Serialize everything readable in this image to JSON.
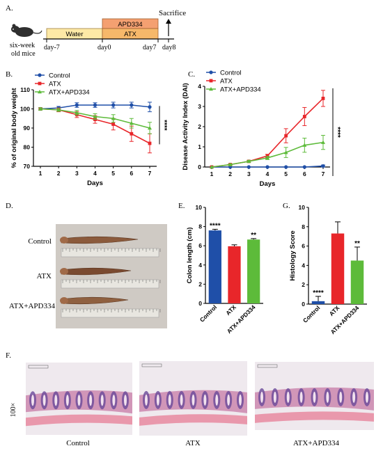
{
  "panels": {
    "a": "A.",
    "b": "B.",
    "c": "C.",
    "d": "D.",
    "e": "E.",
    "f": "F.",
    "g": "G."
  },
  "timeline": {
    "subject": [
      "six-week",
      "old mice"
    ],
    "bars": {
      "water": "Water",
      "apd": "APD334",
      "atx": "ATX"
    },
    "marks": [
      "day-7",
      "day0",
      "day7",
      "day8"
    ],
    "endpoint": "Sacrifice",
    "colors": {
      "water": "#fde9a6",
      "apd": "#f4a071",
      "atx": "#f6b86a"
    }
  },
  "colors": {
    "control": "#1f4fa8",
    "atx": "#e8262a",
    "atx_apd": "#5dbb3a"
  },
  "chart_data": [
    {
      "id": "b",
      "type": "line",
      "title": "",
      "xlabel": "Days",
      "ylabel": "% of original body weight",
      "x": [
        1,
        2,
        3,
        4,
        5,
        6,
        7
      ],
      "xlim": [
        1,
        7
      ],
      "ylim": [
        70,
        110
      ],
      "yticks": [
        70,
        80,
        90,
        100,
        110
      ],
      "legend": "top-left",
      "significance": "****",
      "series": [
        {
          "name": "Control",
          "values": [
            100,
            100.5,
            102,
            102,
            102,
            102,
            101
          ],
          "err": [
            0.6,
            0.8,
            1.2,
            1.2,
            1.5,
            1.5,
            2.5
          ]
        },
        {
          "name": "ATX",
          "values": [
            100,
            99.5,
            97,
            94.5,
            92,
            87,
            82
          ],
          "err": [
            0.6,
            1,
            1.5,
            2,
            3,
            4,
            5
          ]
        },
        {
          "name": "ATX+APD334",
          "values": [
            100,
            99.5,
            98,
            96,
            95,
            92.5,
            90
          ],
          "err": [
            0.6,
            0.8,
            1.2,
            1.5,
            2,
            2.5,
            3
          ]
        }
      ]
    },
    {
      "id": "c",
      "type": "line",
      "title": "",
      "xlabel": "Days",
      "ylabel": "Disease Activity Index (DAI)",
      "x": [
        1,
        2,
        3,
        4,
        5,
        6,
        7
      ],
      "xlim": [
        1,
        7
      ],
      "ylim": [
        0,
        4
      ],
      "yticks": [
        0,
        1,
        2,
        3,
        4
      ],
      "legend": "top-left",
      "significance": "****",
      "series": [
        {
          "name": "Control",
          "values": [
            0,
            0,
            0,
            0,
            0,
            0,
            0.05
          ],
          "err": [
            0,
            0,
            0,
            0,
            0,
            0,
            0.05
          ]
        },
        {
          "name": "ATX",
          "values": [
            0,
            0.12,
            0.28,
            0.55,
            1.55,
            2.5,
            3.4
          ],
          "err": [
            0,
            0.03,
            0.05,
            0.08,
            0.35,
            0.45,
            0.4
          ]
        },
        {
          "name": "ATX+APD334",
          "values": [
            0,
            0.12,
            0.28,
            0.45,
            0.72,
            1.08,
            1.22
          ],
          "err": [
            0,
            0.03,
            0.05,
            0.08,
            0.25,
            0.35,
            0.35
          ]
        }
      ]
    },
    {
      "id": "e",
      "type": "bar",
      "title": "",
      "xlabel": "",
      "ylabel": "Colon length (cm)",
      "categories": [
        "Control",
        "ATX",
        "ATX+APD334"
      ],
      "values": [
        7.6,
        5.95,
        6.65
      ],
      "err": [
        0.12,
        0.15,
        0.1
      ],
      "labels": [
        "****",
        "",
        "**"
      ],
      "ylim": [
        0,
        10
      ],
      "yticks": [
        0,
        2,
        4,
        6,
        8,
        10
      ]
    },
    {
      "id": "g",
      "type": "bar",
      "title": "",
      "xlabel": "",
      "ylabel": "Histology Score",
      "categories": [
        "Control",
        "ATX",
        "ATX+APD334"
      ],
      "values": [
        0.3,
        7.3,
        4.5
      ],
      "err": [
        0.5,
        1.2,
        1.4
      ],
      "labels": [
        "****",
        "",
        "**"
      ],
      "ylim": [
        0,
        10
      ],
      "yticks": [
        0,
        2,
        4,
        6,
        8,
        10
      ]
    }
  ],
  "photo_d": {
    "rows": [
      "Control",
      "ATX",
      "ATX+APD334"
    ]
  },
  "histology": {
    "magnification": "100×",
    "captions": [
      "Control",
      "ATX",
      "ATX+APD334"
    ]
  }
}
